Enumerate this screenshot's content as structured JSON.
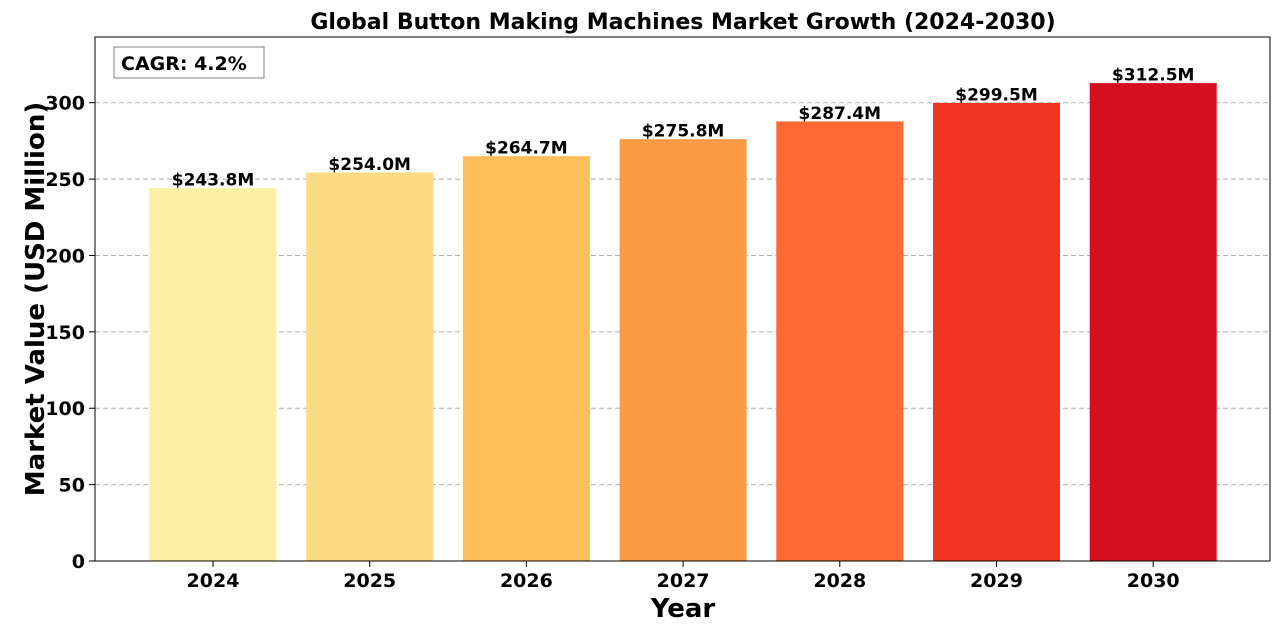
{
  "chart_data": {
    "type": "bar",
    "title": "Global Button Making Machines Market Growth (2024-2030)",
    "xlabel": "Year",
    "ylabel": "Market Value (USD Million)",
    "categories": [
      "2024",
      "2025",
      "2026",
      "2027",
      "2028",
      "2029",
      "2030"
    ],
    "values": [
      243.8,
      254.0,
      264.7,
      275.8,
      287.4,
      299.5,
      312.5
    ],
    "data_labels": [
      "$243.8M",
      "$254.0M",
      "$264.7M",
      "$275.8M",
      "$287.4M",
      "$299.5M",
      "$312.5M"
    ],
    "colors": [
      "#fdefa6",
      "#fddb82",
      "#febf5a",
      "#fd9a44",
      "#fc6932",
      "#f03523",
      "#d30f20"
    ],
    "yticks": [
      0,
      50,
      100,
      150,
      200,
      250,
      300
    ],
    "ylim": [
      0,
      343
    ],
    "grid": "y-dashed",
    "annotation": "CAGR: 4.2%",
    "annotation_position": "top-left"
  }
}
